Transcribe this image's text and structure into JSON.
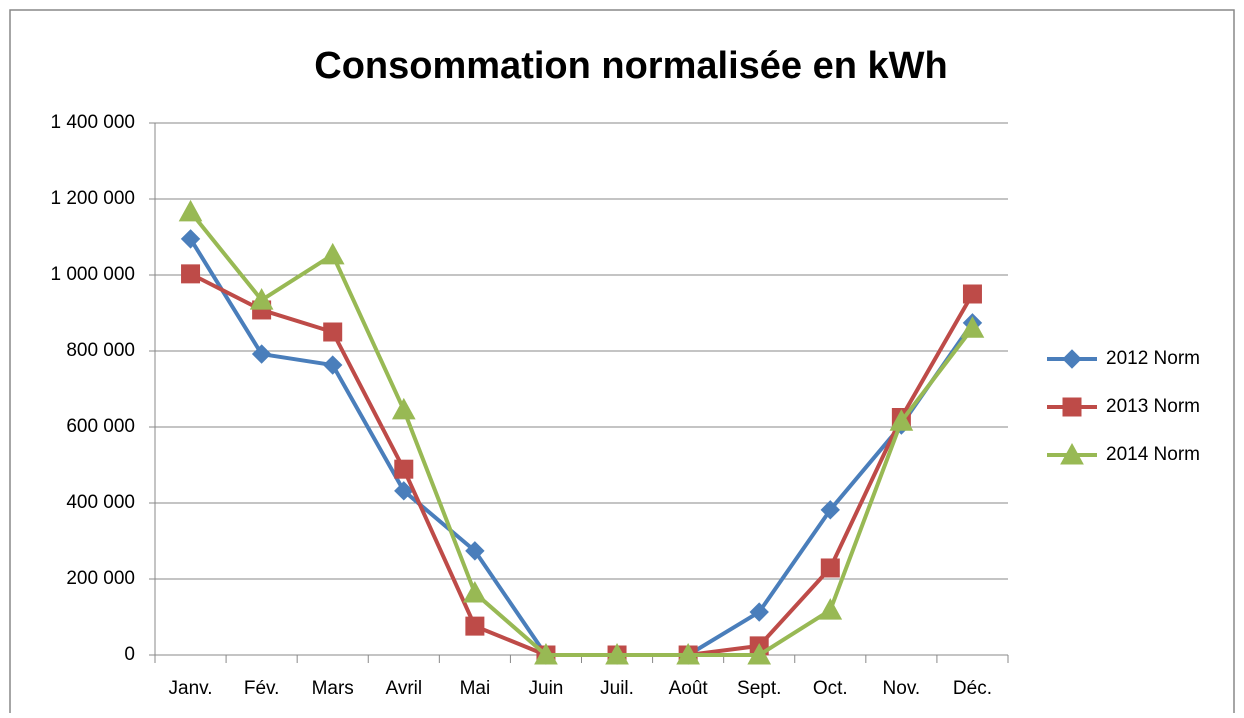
{
  "chart_data": {
    "type": "line",
    "title": "Consommation normalisée en kWh",
    "categories": [
      "Janv.",
      "Fév.",
      "Mars",
      "Avril",
      "Mai",
      "Juin",
      "Juil.",
      "Août",
      "Sept.",
      "Oct.",
      "Nov.",
      "Déc."
    ],
    "series": [
      {
        "name": "2012 Norm",
        "color": "#4a7ebb",
        "marker": "diamond",
        "values": [
          1095000,
          792000,
          763000,
          432000,
          274000,
          0,
          0,
          0,
          113000,
          382000,
          605000,
          874000
        ]
      },
      {
        "name": "2013 Norm",
        "color": "#be4b48",
        "marker": "square",
        "values": [
          1003000,
          908000,
          850000,
          489000,
          76000,
          0,
          0,
          0,
          24000,
          229000,
          625000,
          950000
        ]
      },
      {
        "name": "2014 Norm",
        "color": "#98b954",
        "marker": "triangle",
        "values": [
          1166000,
          934000,
          1053000,
          645000,
          163000,
          0,
          0,
          0,
          0,
          118000,
          615000,
          860000
        ]
      }
    ],
    "ylim": [
      0,
      1400000
    ],
    "yticks": [
      0,
      {
        "value": 200000,
        "label": "200 000"
      },
      {
        "value": 400000,
        "label": "400 000"
      },
      {
        "value": 600000,
        "label": "600 000"
      },
      {
        "value": 800000,
        "label": "800 000"
      },
      {
        "value": 1000000,
        "label": "1 000 000"
      },
      {
        "value": 1200000,
        "label": "1 200 000"
      },
      {
        "value": 1400000,
        "label": "1 400 000"
      }
    ],
    "grid": true,
    "legend": "right"
  }
}
